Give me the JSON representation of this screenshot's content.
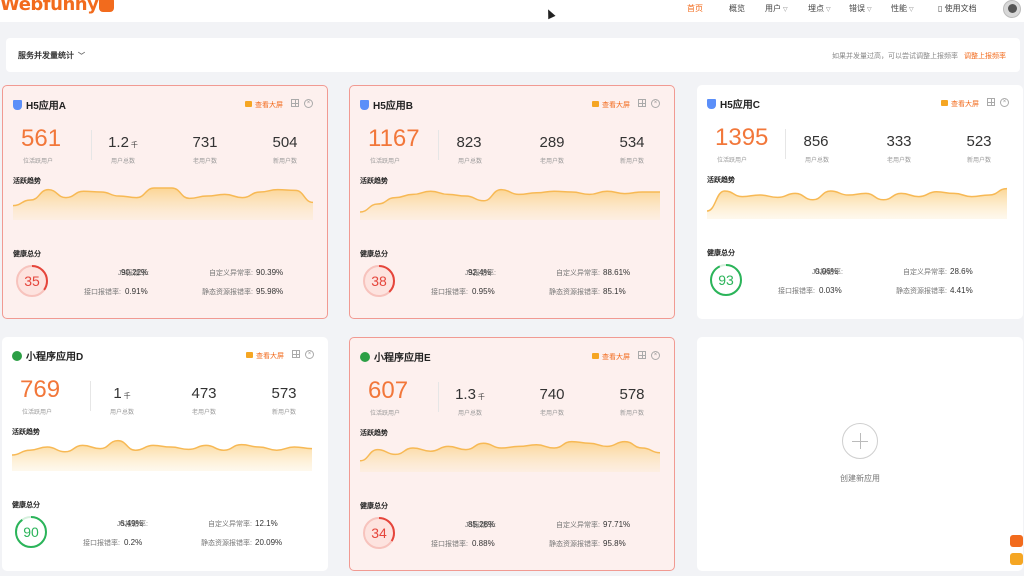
{
  "header": {
    "logo": "Webfunny",
    "nav": [
      {
        "label": "首页",
        "active": true,
        "dropdown": false
      },
      {
        "label": "概览",
        "active": false,
        "dropdown": false
      },
      {
        "label": "用户",
        "active": false,
        "dropdown": true
      },
      {
        "label": "埋点",
        "active": false,
        "dropdown": true
      },
      {
        "label": "错误",
        "active": false,
        "dropdown": true
      },
      {
        "label": "性能",
        "active": false,
        "dropdown": true
      },
      {
        "label": "使用文档",
        "active": false,
        "dropdown": false
      }
    ]
  },
  "filter": {
    "title": "服务并发量统计",
    "tip": "如果并发量过高，可以尝试调整上报频率",
    "link": "调整上报频率"
  },
  "card_labels": {
    "screen": "查看大屏",
    "active_users": "位活跃用户",
    "total_users": "用户总数",
    "old_users": "老用户数",
    "new_users": "新用户数",
    "trend": "活跃趋势",
    "health": "健康总分",
    "js_error": "JS报错率:",
    "custom_error": "自定义异常率:",
    "api_error": "接口报错率:",
    "static_error": "静态资源报错率:"
  },
  "apps": [
    {
      "name": "H5应用A",
      "type": "h5",
      "alert": true,
      "active": "561",
      "total": "1.2",
      "total_unit": "千",
      "old": "731",
      "new": "504",
      "score": "35",
      "score_value": 35,
      "js": "90.22%",
      "custom": "90.39%",
      "api": "0.91%",
      "static": "95.98%",
      "trend": [
        38,
        45,
        58,
        48,
        56,
        55,
        50,
        48,
        60,
        60,
        47,
        50,
        52,
        48,
        55,
        58,
        57,
        42
      ]
    },
    {
      "name": "H5应用B",
      "type": "h5",
      "alert": true,
      "active": "1167",
      "total": "823",
      "total_unit": "",
      "old": "289",
      "new": "534",
      "score": "38",
      "score_value": 38,
      "js": "92.4%",
      "custom": "88.61%",
      "api": "0.95%",
      "static": "85.1%",
      "trend": [
        30,
        40,
        48,
        52,
        56,
        52,
        50,
        44,
        58,
        52,
        54,
        56,
        55,
        52,
        56,
        53,
        55,
        55
      ]
    },
    {
      "name": "H5应用C",
      "type": "h5",
      "alert": false,
      "active": "1395",
      "total": "856",
      "total_unit": "",
      "old": "333",
      "new": "523",
      "score": "93",
      "score_value": 93,
      "js": "0.06%",
      "custom": "28.6%",
      "api": "0.03%",
      "static": "4.41%",
      "trend": [
        30,
        55,
        48,
        50,
        47,
        52,
        44,
        55,
        50,
        52,
        44,
        52,
        48,
        54,
        52,
        48,
        50,
        58
      ]
    },
    {
      "name": "小程序应用D",
      "type": "mp",
      "alert": false,
      "active": "769",
      "total": "1",
      "total_unit": "千",
      "old": "473",
      "new": "573",
      "score": "90",
      "score_value": 90,
      "js": "6.49%",
      "custom": "12.1%",
      "api": "0.2%",
      "static": "20.09%",
      "trend": [
        40,
        46,
        50,
        44,
        52,
        48,
        58,
        46,
        52,
        50,
        47,
        52,
        46,
        53,
        50,
        46,
        50,
        48
      ]
    },
    {
      "name": "小程序应用E",
      "type": "mp",
      "alert": true,
      "active": "607",
      "total": "1.3",
      "total_unit": "千",
      "old": "740",
      "new": "578",
      "score": "34",
      "score_value": 34,
      "js": "85.28%",
      "custom": "97.71%",
      "api": "0.88%",
      "static": "95.8%",
      "trend": [
        34,
        48,
        42,
        50,
        46,
        52,
        48,
        56,
        50,
        52,
        54,
        50,
        58,
        56,
        52,
        58,
        50,
        44
      ]
    }
  ],
  "new_app": {
    "label": "创建新应用"
  },
  "colors": {
    "accent": "#f26b1d",
    "alert_ring": "#e5453b",
    "ok_ring": "#2bb45a"
  }
}
